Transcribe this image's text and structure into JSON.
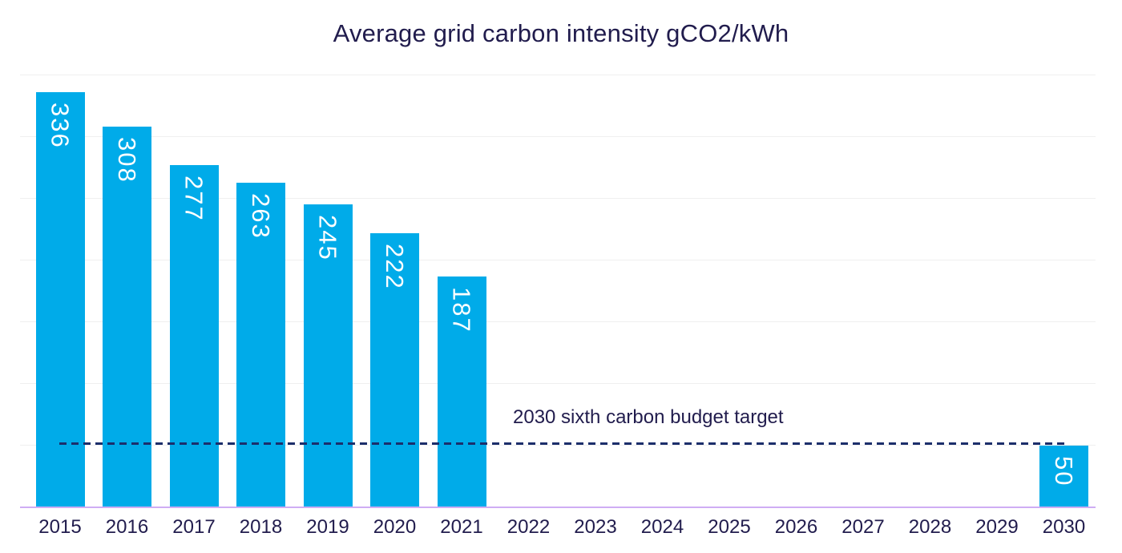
{
  "chart_data": {
    "type": "bar",
    "title": "Average grid carbon intensity gCO2/kWh",
    "categories": [
      "2015",
      "2016",
      "2017",
      "2018",
      "2019",
      "2020",
      "2021",
      "2022",
      "2023",
      "2024",
      "2025",
      "2026",
      "2027",
      "2028",
      "2029",
      "2030"
    ],
    "values": [
      336,
      308,
      277,
      263,
      245,
      222,
      187,
      null,
      null,
      null,
      null,
      null,
      null,
      null,
      null,
      50
    ],
    "target_line": {
      "label": "2030 sixth carbon budget target",
      "value": 50,
      "from_category": "2015",
      "to_category": "2030"
    },
    "ylim": [
      0,
      350
    ],
    "grid_step": 50,
    "grid": true,
    "legend": "none",
    "y_axis_tick_labels_visible": false,
    "colors": {
      "bar": "#00ABE9",
      "bar_value_label": "#FFFFFF",
      "title_text": "#211C4D",
      "tick_text": "#211C4D",
      "target_line": "#1C2E6B",
      "target_label_text": "#211C4D",
      "x_axis_line": "#CFADF4",
      "gridline": "#EFEFEF",
      "background": "#FFFFFF"
    }
  }
}
